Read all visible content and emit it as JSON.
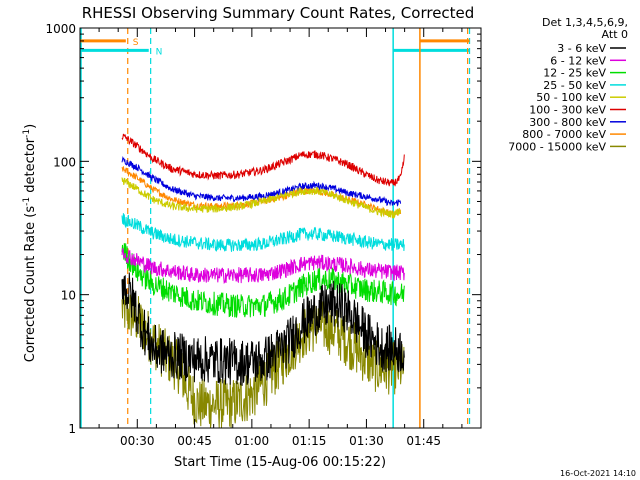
{
  "chart_data": {
    "type": "line",
    "title": "RHESSI Observing Summary Count Rates, Corrected",
    "xlabel": "Start Time (15-Aug-06 00:15:22)",
    "ylabel_main": "Corrected Count Rate (s",
    "ylabel_sup1": "-1",
    "ylabel_mid": " detector",
    "ylabel_sup2": "-1",
    "ylabel_end": ")",
    "yscale": "log",
    "ylim": [
      1,
      1000
    ],
    "xlim_minutes": [
      0,
      105
    ],
    "xticks": [
      {
        "label": "00:30",
        "minutes": 15
      },
      {
        "label": "00:45",
        "minutes": 30
      },
      {
        "label": "01:00",
        "minutes": 45
      },
      {
        "label": "01:15",
        "minutes": 60
      },
      {
        "label": "01:30",
        "minutes": 75
      },
      {
        "label": "01:45",
        "minutes": 90
      }
    ],
    "yticks": [
      {
        "label": "1",
        "value": 1
      },
      {
        "label": "10",
        "value": 10
      },
      {
        "label": "100",
        "value": 100
      },
      {
        "label": "1000",
        "value": 1000
      }
    ],
    "legend_header": [
      "Det 1,3,4,5,6,9,",
      "Att 0"
    ],
    "legend_placement": "right",
    "series": [
      {
        "name": "3 - 6 keV",
        "color": "#000000",
        "points": [
          [
            11,
            13
          ],
          [
            12,
            11
          ],
          [
            14,
            9
          ],
          [
            16,
            6
          ],
          [
            19,
            4
          ],
          [
            24,
            3.5
          ],
          [
            30,
            3.3
          ],
          [
            36,
            3.2
          ],
          [
            42,
            3.1
          ],
          [
            48,
            3.2
          ],
          [
            54,
            4.2
          ],
          [
            58,
            6
          ],
          [
            62,
            7.5
          ],
          [
            66,
            8.5
          ],
          [
            69,
            8
          ],
          [
            72,
            6.5
          ],
          [
            75,
            5
          ],
          [
            79,
            4
          ],
          [
            85,
            3.8
          ]
        ],
        "noise": 0.18
      },
      {
        "name": "6 - 12 keV",
        "color": "#dd00dd",
        "points": [
          [
            11,
            22
          ],
          [
            12,
            20
          ],
          [
            15,
            18
          ],
          [
            19,
            16
          ],
          [
            24,
            15
          ],
          [
            30,
            14
          ],
          [
            36,
            14
          ],
          [
            42,
            14
          ],
          [
            48,
            14
          ],
          [
            54,
            15.5
          ],
          [
            58,
            17
          ],
          [
            62,
            17.5
          ],
          [
            66,
            17
          ],
          [
            70,
            16.5
          ],
          [
            74,
            15.5
          ],
          [
            78,
            15
          ],
          [
            85,
            14.5
          ]
        ],
        "noise": 0.06
      },
      {
        "name": "12 - 25 keV",
        "color": "#00dd00",
        "points": [
          [
            11,
            23
          ],
          [
            12,
            20
          ],
          [
            15,
            15
          ],
          [
            19,
            12
          ],
          [
            24,
            10.5
          ],
          [
            30,
            9
          ],
          [
            36,
            8.5
          ],
          [
            42,
            8.2
          ],
          [
            48,
            8.3
          ],
          [
            54,
            9.5
          ],
          [
            58,
            11.5
          ],
          [
            62,
            13
          ],
          [
            66,
            13
          ],
          [
            70,
            12
          ],
          [
            74,
            11
          ],
          [
            78,
            10.5
          ],
          [
            85,
            10
          ]
        ],
        "noise": 0.09
      },
      {
        "name": "25 - 50 keV",
        "color": "#00dddd",
        "points": [
          [
            11,
            38
          ],
          [
            12,
            36
          ],
          [
            15,
            33
          ],
          [
            19,
            29
          ],
          [
            24,
            26
          ],
          [
            30,
            24.5
          ],
          [
            36,
            23.5
          ],
          [
            42,
            23.5
          ],
          [
            48,
            24
          ],
          [
            54,
            26.5
          ],
          [
            58,
            28.5
          ],
          [
            62,
            28.5
          ],
          [
            66,
            27.5
          ],
          [
            70,
            26.5
          ],
          [
            74,
            25
          ],
          [
            78,
            24
          ],
          [
            85,
            23.5
          ]
        ],
        "noise": 0.05
      },
      {
        "name": "50 - 100 keV",
        "color": "#cccc00",
        "points": [
          [
            11,
            72
          ],
          [
            12,
            70
          ],
          [
            15,
            62
          ],
          [
            19,
            52
          ],
          [
            24,
            46
          ],
          [
            30,
            44
          ],
          [
            36,
            44
          ],
          [
            42,
            46
          ],
          [
            48,
            50
          ],
          [
            54,
            56
          ],
          [
            58,
            60
          ],
          [
            62,
            60
          ],
          [
            66,
            56
          ],
          [
            70,
            51
          ],
          [
            74,
            46
          ],
          [
            78,
            42
          ],
          [
            82,
            40
          ],
          [
            84,
            43
          ]
        ],
        "noise": 0.03
      },
      {
        "name": "100 - 300 keV",
        "color": "#dd0000",
        "points": [
          [
            11,
            155
          ],
          [
            12,
            150
          ],
          [
            15,
            130
          ],
          [
            19,
            105
          ],
          [
            24,
            88
          ],
          [
            30,
            80
          ],
          [
            36,
            78
          ],
          [
            42,
            80
          ],
          [
            48,
            86
          ],
          [
            54,
            100
          ],
          [
            58,
            112
          ],
          [
            62,
            113
          ],
          [
            66,
            105
          ],
          [
            70,
            95
          ],
          [
            74,
            82
          ],
          [
            78,
            72
          ],
          [
            82,
            68
          ],
          [
            84,
            75
          ],
          [
            85,
            110
          ]
        ],
        "noise": 0.03
      },
      {
        "name": "300 - 800 keV",
        "color": "#0000dd",
        "points": [
          [
            11,
            102
          ],
          [
            12,
            100
          ],
          [
            15,
            90
          ],
          [
            19,
            75
          ],
          [
            24,
            62
          ],
          [
            30,
            55
          ],
          [
            36,
            53
          ],
          [
            42,
            53
          ],
          [
            48,
            55
          ],
          [
            54,
            60
          ],
          [
            58,
            65
          ],
          [
            62,
            66
          ],
          [
            66,
            63
          ],
          [
            70,
            58
          ],
          [
            74,
            55
          ],
          [
            78,
            52
          ],
          [
            82,
            48
          ],
          [
            84,
            50
          ]
        ],
        "noise": 0.025
      },
      {
        "name": "800 - 7000 keV",
        "color": "#ff8800",
        "points": [
          [
            11,
            88
          ],
          [
            12,
            85
          ],
          [
            15,
            75
          ],
          [
            19,
            62
          ],
          [
            24,
            52
          ],
          [
            30,
            47
          ],
          [
            36,
            46
          ],
          [
            42,
            47
          ],
          [
            48,
            50
          ],
          [
            54,
            55
          ],
          [
            58,
            60
          ],
          [
            62,
            60
          ],
          [
            66,
            56
          ],
          [
            70,
            52
          ],
          [
            74,
            48
          ],
          [
            78,
            44
          ],
          [
            82,
            40
          ],
          [
            84,
            42
          ]
        ],
        "noise": 0.025
      },
      {
        "name": "7000 - 15000 keV",
        "color": "#888800",
        "points": [
          [
            11,
            8
          ],
          [
            12,
            7.5
          ],
          [
            15,
            6.5
          ],
          [
            19,
            4.5
          ],
          [
            22,
            3.6
          ],
          [
            26,
            2.8
          ],
          [
            28,
            2
          ],
          [
            31,
            1.5
          ],
          [
            40,
            1.5
          ],
          [
            45,
            1.8
          ],
          [
            50,
            2.5
          ],
          [
            54,
            3.5
          ],
          [
            58,
            5
          ],
          [
            62,
            6
          ],
          [
            66,
            5.5
          ],
          [
            70,
            4.5
          ],
          [
            74,
            3.5
          ],
          [
            78,
            2.8
          ],
          [
            85,
            2.8
          ]
        ],
        "noise": 0.2
      }
    ],
    "markers": [
      {
        "label": "S",
        "color": "#ff8800",
        "bar_y": 800,
        "bar_x": [
          0,
          12
        ],
        "dash_x": 12.5,
        "solid_x": null
      },
      {
        "label": "N",
        "color": "#00dddd",
        "bar_y": 680,
        "bar_x": [
          0,
          18
        ],
        "dash_x": 18.5,
        "solid_x": null
      }
    ],
    "markers_right": [
      {
        "color": "#00dddd",
        "bar_y": 680,
        "bar_x": [
          82,
          102
        ],
        "solid_x": 82,
        "dash_x": 102
      },
      {
        "color": "#ff8800",
        "bar_y": 800,
        "bar_x": [
          89,
          102
        ],
        "solid_x": 89,
        "dash_x": 101.5
      }
    ],
    "left_solid_x": 0,
    "footer_timestamp": "16-Oct-2021 14:10"
  }
}
